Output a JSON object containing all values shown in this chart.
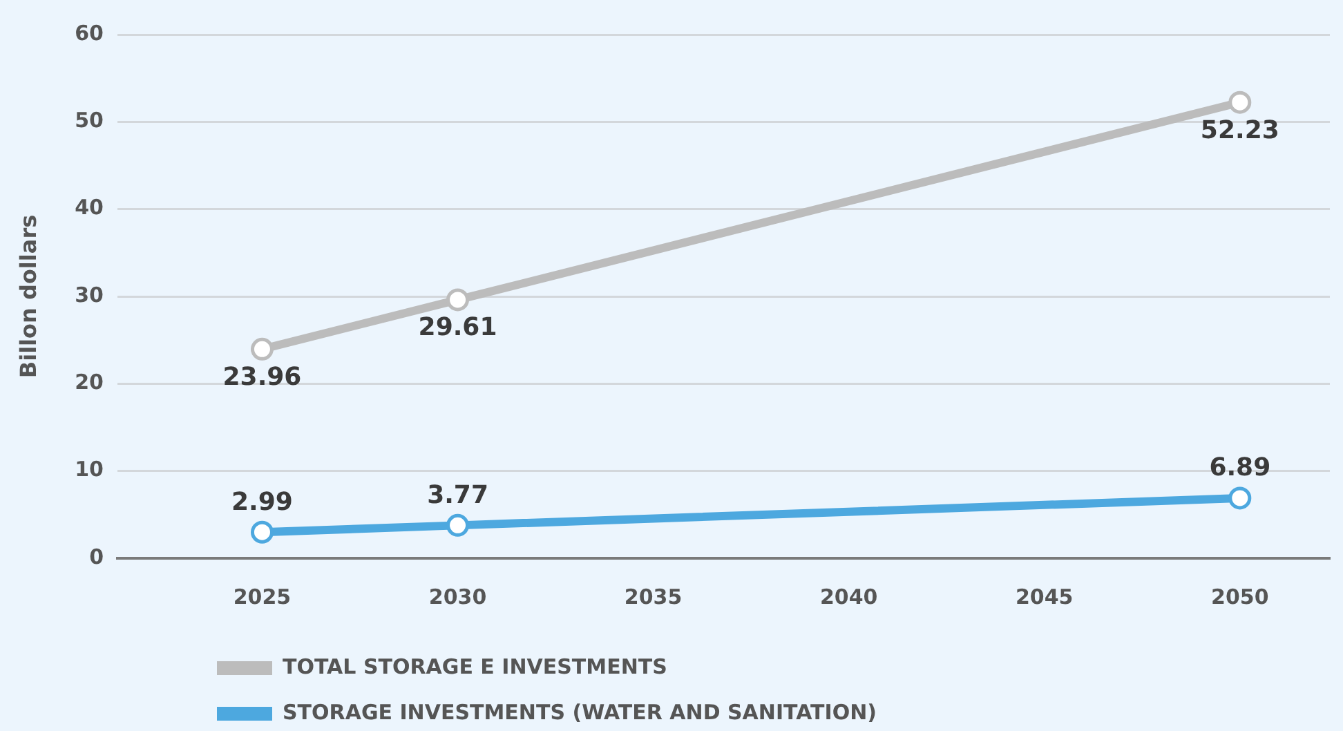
{
  "chart_data": {
    "type": "line",
    "ylabel": "Billon dollars",
    "x": [
      2025,
      2030,
      2050
    ],
    "xlim": [
      2021.3,
      2052.3
    ],
    "xticks": [
      2025,
      2030,
      2035,
      2040,
      2045,
      2050
    ],
    "ylim": [
      0,
      60
    ],
    "yticks": [
      0,
      10,
      20,
      30,
      40,
      50,
      60
    ],
    "series": [
      {
        "name": "TOTAL STORAGE E INVESTMENTS",
        "color": "#bcbcbc",
        "values": [
          23.96,
          29.61,
          52.23
        ]
      },
      {
        "name": "STORAGE INVESTMENTS (WATER AND SANITATION)",
        "color": "#4da8df",
        "values": [
          2.99,
          3.77,
          6.89
        ]
      }
    ],
    "data_labels": true,
    "grid": "y",
    "legend": "bottom",
    "marker": "circle",
    "line_style": "solid"
  }
}
